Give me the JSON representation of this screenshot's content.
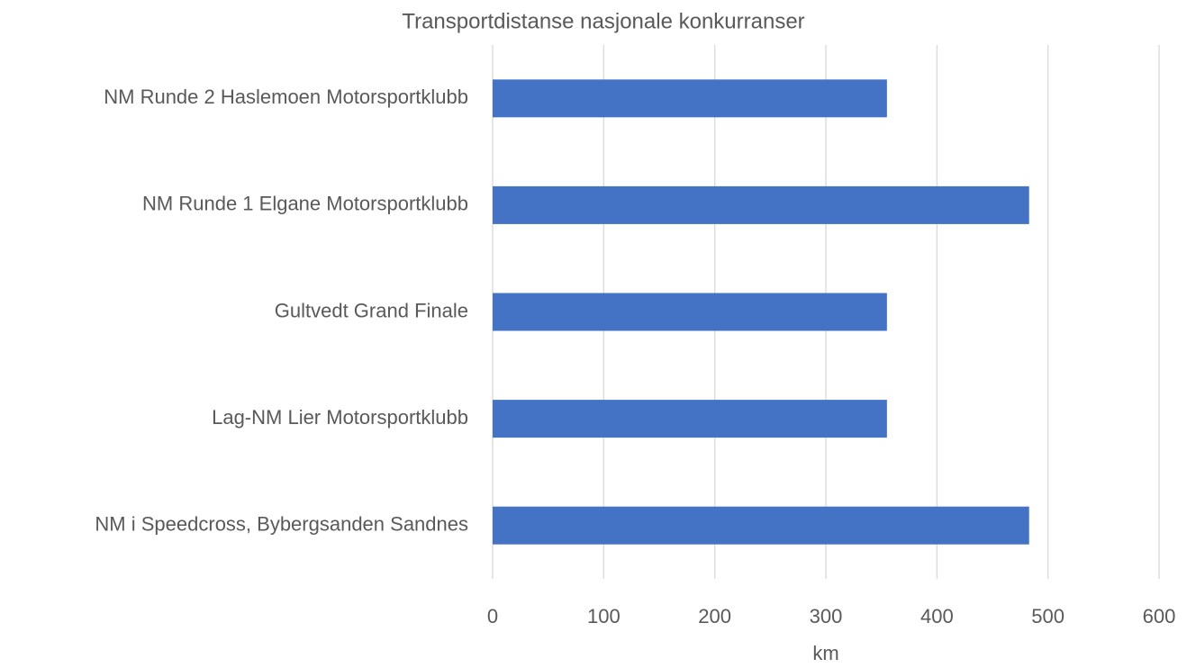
{
  "chart_data": {
    "type": "hbar",
    "title": "Transportdistanse nasjonale konkurranser",
    "categories": [
      "NM Runde 2 Haslemoen Motorsportklubb",
      "NM Runde 1 Elgane Motorsportklubb",
      "Gultvedt Grand Finale",
      "Lag-NM Lier Motorsportklubb",
      "NM i Speedcross, Bybergsanden Sandnes"
    ],
    "values": [
      355,
      483,
      355,
      355,
      483
    ],
    "color": "#4472c4",
    "x_label": "km",
    "xlim": [
      0,
      600
    ],
    "xticks": [
      0,
      100,
      200,
      300,
      400,
      500,
      600
    ],
    "grid": true
  }
}
